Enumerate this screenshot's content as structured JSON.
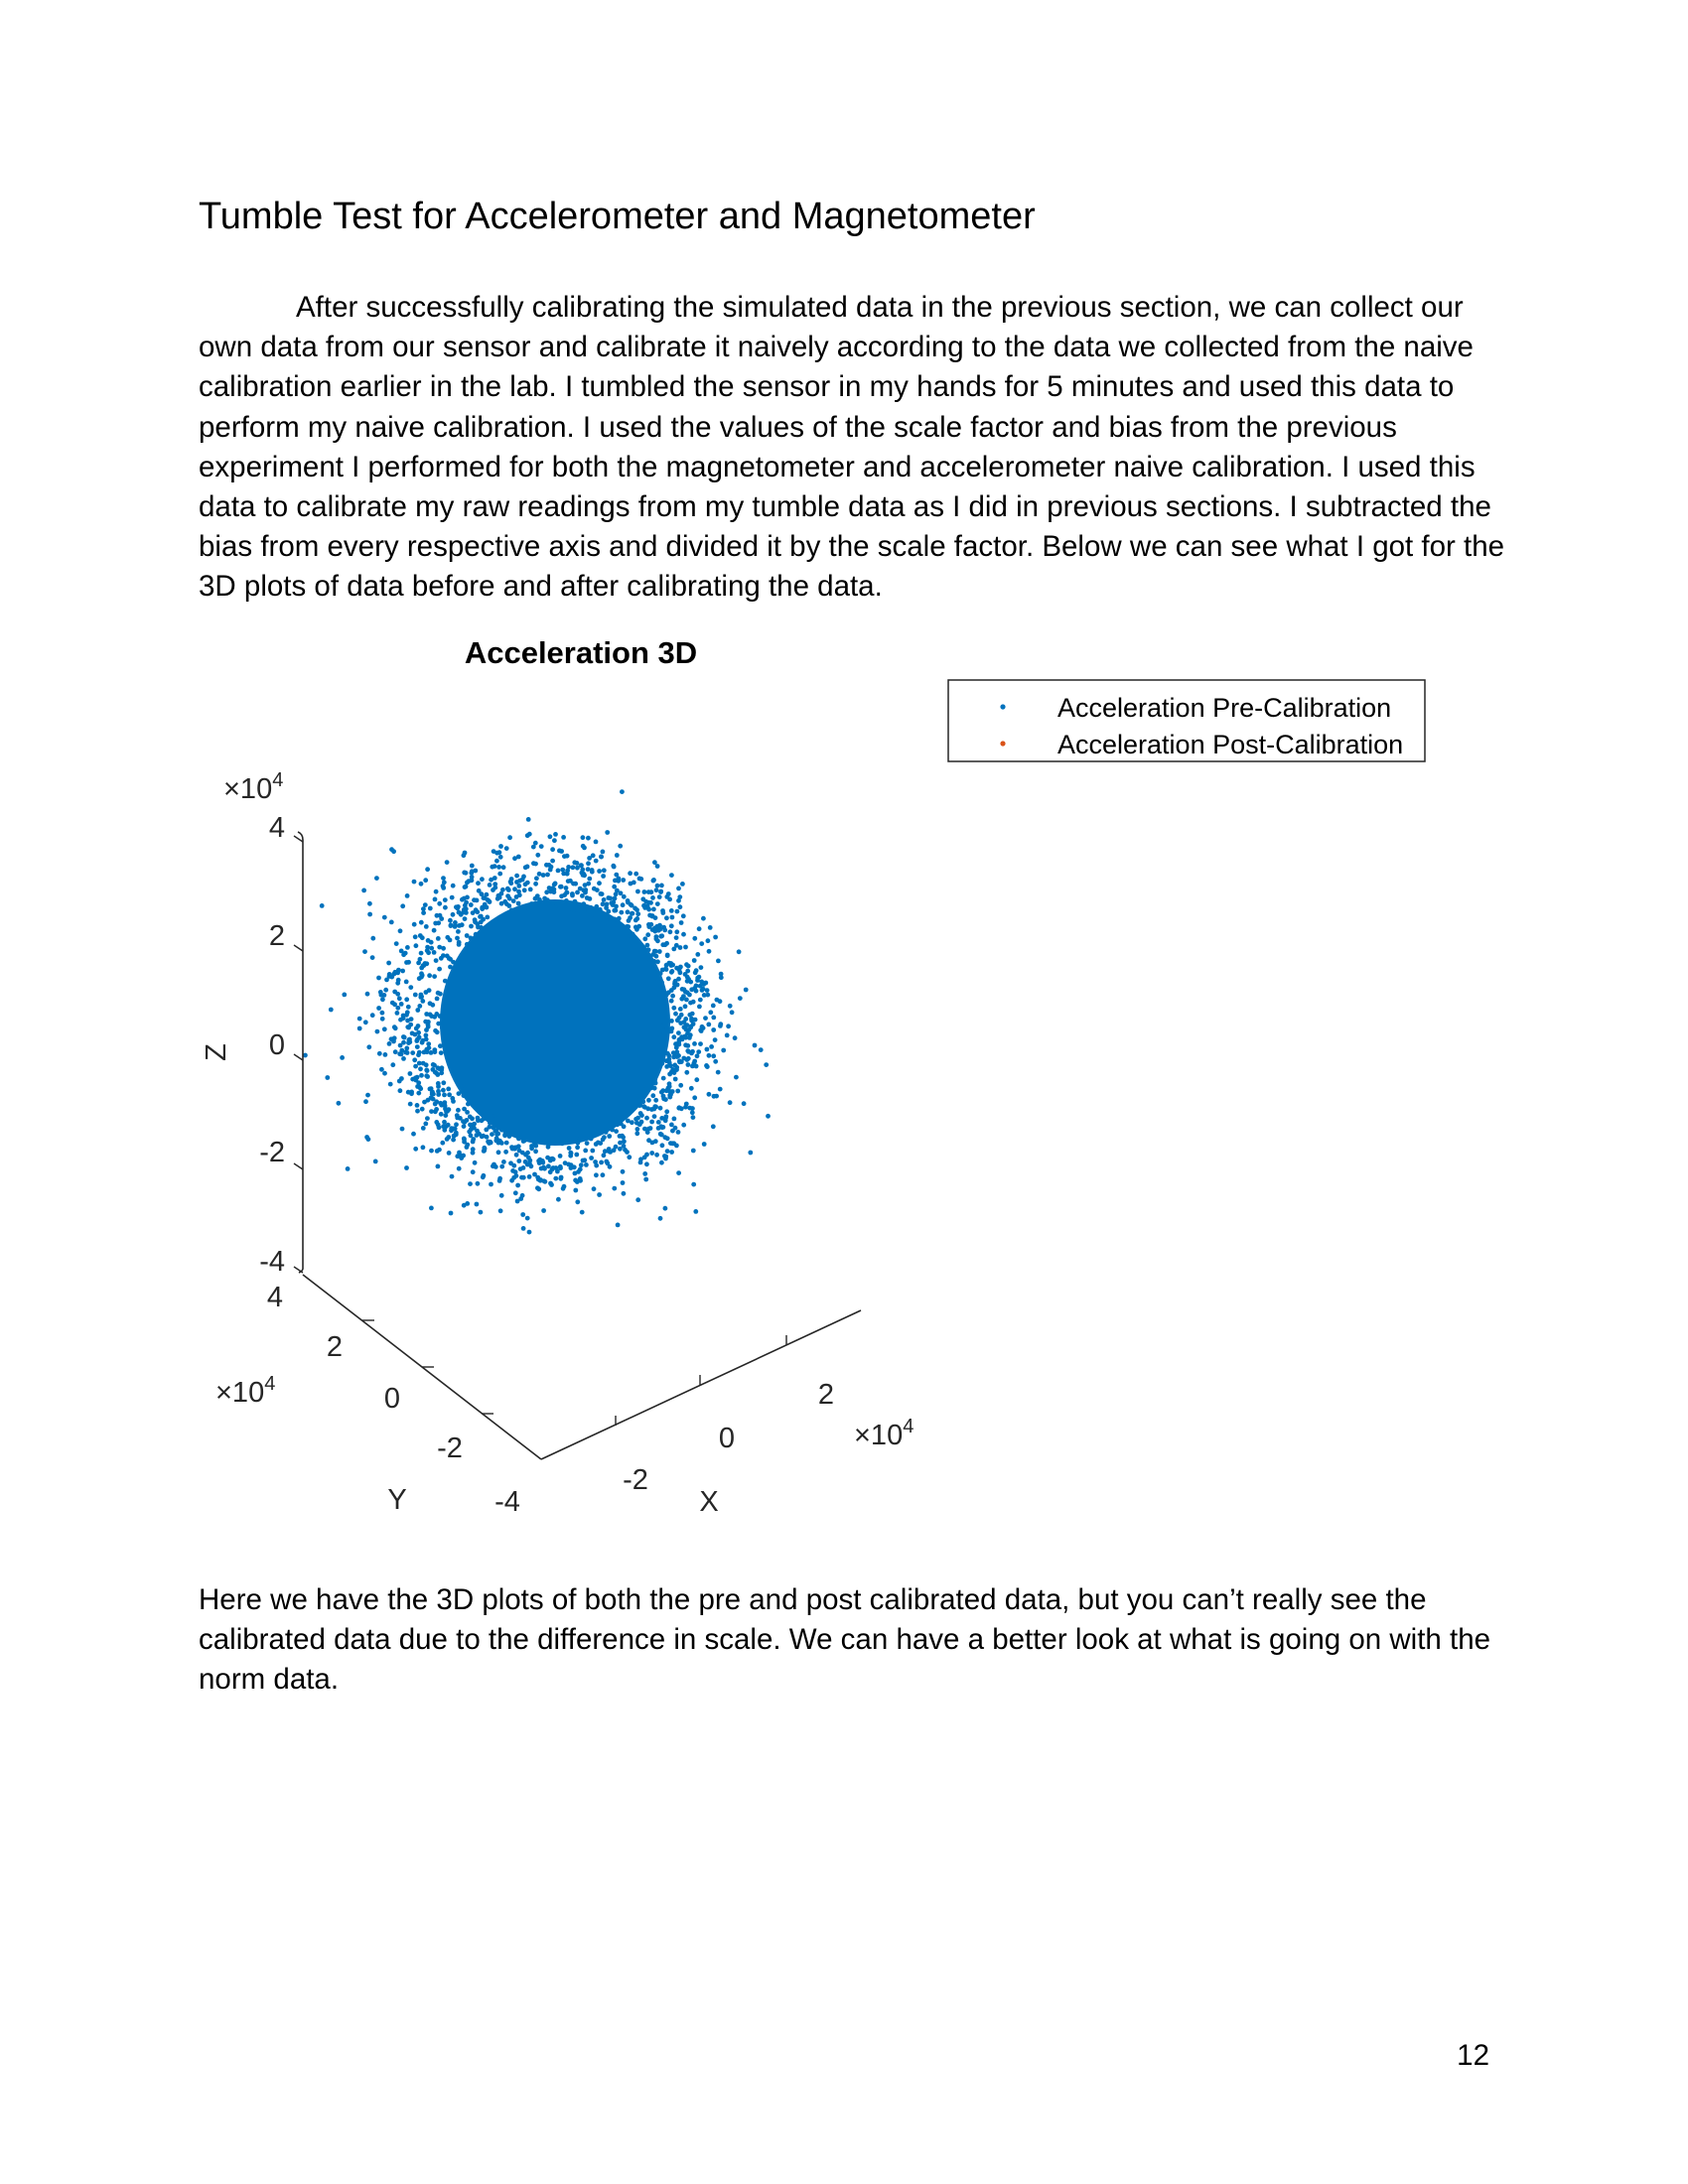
{
  "page": {
    "heading": "Tumble Test for Accelerometer and Magnetometer",
    "paragraph1": "After successfully calibrating the simulated data in the previous section, we can collect our own data from our sensor and calibrate it naively according to the data we collected from the naive calibration earlier in the lab. I tumbled the sensor in my hands for 5 minutes and used this data to perform my naive calibration. I used the values of the scale factor and bias from the previous experiment I performed for both the magnetometer and accelerometer naive calibration. I used this data to calibrate my raw readings from my tumble data as I did in previous sections. I subtracted the bias from every respective axis and divided it by the scale factor. Below we can see what I got for the 3D plots of data before and after calibrating the data.",
    "paragraph2": "Here we have the 3D plots of both the pre and post calibrated data, but you can’t really see the calibrated data due to the difference in scale. We can have a better look at what is going on with the norm data.",
    "page_number": "12"
  },
  "chart_data": {
    "type": "scatter",
    "title": "Acceleration 3D",
    "xlabel": "X",
    "ylabel": "Y",
    "zlabel": "Z",
    "x_exponent": "×10",
    "y_exponent": "×10",
    "z_exponent": "×10",
    "exponent_power": "4",
    "x_ticks": [
      "-2",
      "0",
      "2"
    ],
    "y_ticks": [
      "-4",
      "-2",
      "0",
      "2",
      "4"
    ],
    "z_ticks": [
      "4",
      "2",
      "0",
      "-2",
      "-4"
    ],
    "xlim": [
      -4,
      4
    ],
    "ylim": [
      -4,
      4
    ],
    "zlim": [
      -4,
      4
    ],
    "legend_position": "top-right",
    "series": [
      {
        "name": "Acceleration Pre-Calibration",
        "color": "#0072BD",
        "distribution": "dense spherical cloud centered near the origin",
        "approx_spread_std": 0.9,
        "approx_count": 30000
      },
      {
        "name": "Acceleration Post-Calibration",
        "color": "#D95319",
        "distribution": "concentrated at origin (not visible at this scale)",
        "approx_count": 0
      }
    ]
  }
}
